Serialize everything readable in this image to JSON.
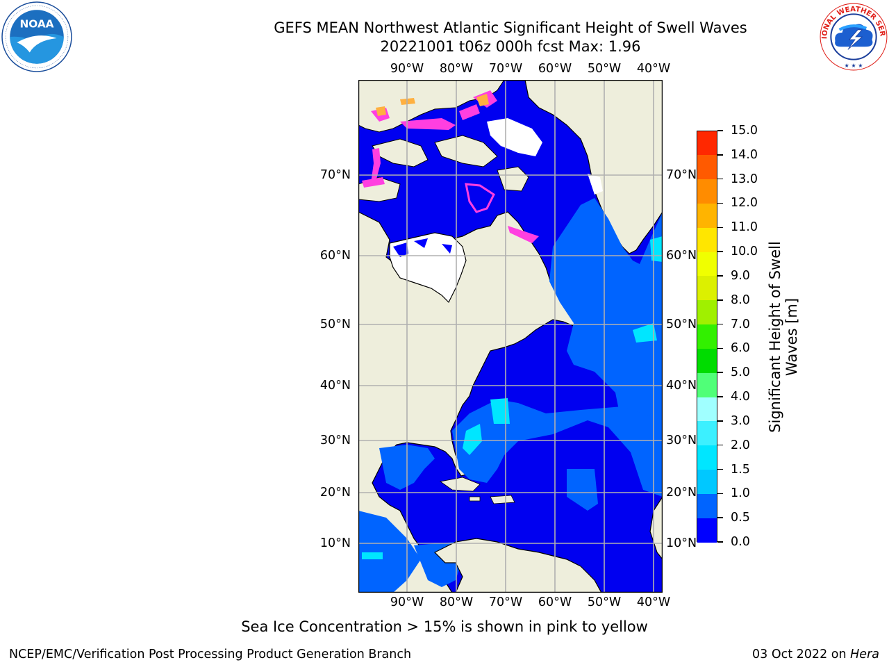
{
  "header": {
    "title_line1": "GEFS MEAN Northwest Atlantic Significant Height of Swell Waves",
    "title_line2": "20221001 t06z 000h fcst   Max: 1.96"
  },
  "logos": {
    "left": {
      "name": "NOAA",
      "ring_text": "NATIONAL OCEANIC AND ATMOSPHERIC ADMINISTRATION · U.S. DEPARTMENT OF COMMERCE"
    },
    "right": {
      "ring_text": "NATIONAL WEATHER SERVICE"
    }
  },
  "map": {
    "lon_labels": [
      "90°W",
      "80°W",
      "70°W",
      "60°W",
      "50°W",
      "40°W"
    ],
    "lat_labels": [
      "70°N",
      "60°N",
      "50°N",
      "40°N",
      "30°N",
      "20°N",
      "10°N"
    ],
    "colors": {
      "land": "#eeeedc",
      "coast": "#000000",
      "grid": "#b0b0b0",
      "ice": "#ff3fe0"
    }
  },
  "colorbar": {
    "title": "Significant Height of Swell Waves [m]",
    "tick_labels": [
      "0.0",
      "0.5",
      "1.0",
      "1.5",
      "2.0",
      "3.0",
      "4.0",
      "5.0",
      "6.0",
      "7.0",
      "8.0",
      "9.0",
      "10.0",
      "11.0",
      "12.0",
      "13.0",
      "14.0",
      "15.0"
    ],
    "colors": [
      "#0000ff",
      "#0064ff",
      "#00c8ff",
      "#00e6ff",
      "#3cf0ff",
      "#a0ffff",
      "#50ff78",
      "#00dc00",
      "#32f000",
      "#a0f000",
      "#dcf000",
      "#f0ff00",
      "#ffe600",
      "#ffb400",
      "#ff8c00",
      "#ff5a00",
      "#ff2800",
      "#ff0000"
    ]
  },
  "note": "Sea Ice Concentration > 15% is shown in pink to yellow",
  "footer": {
    "left": "NCEP/EMC/Verification Post Processing Product Generation Branch",
    "right_prefix": "03 Oct 2022 on ",
    "right_host": "Hera"
  }
}
